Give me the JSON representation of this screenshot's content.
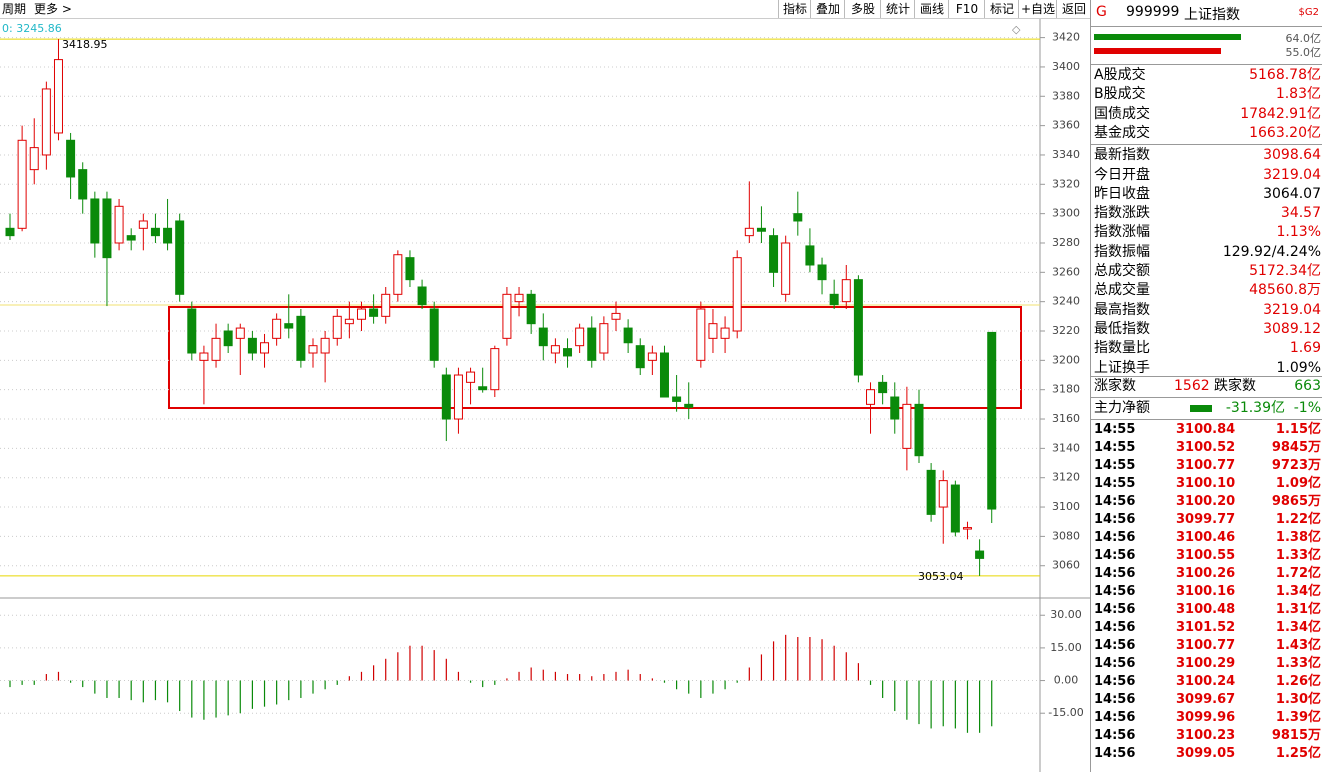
{
  "toolbar": {
    "period": "周期",
    "more": "更多 >",
    "buttons": [
      "指标",
      "叠加",
      "多股",
      "统计",
      "画线",
      "F10",
      "标记",
      "+自选",
      "返回"
    ]
  },
  "chart_data": [
    {
      "type": "candlestick",
      "cursor_label": "0: 3245.86",
      "high_label": 3418.95,
      "low_label": 3053.04,
      "up_color": "#e00000",
      "down_color": "#0a8a0a",
      "ylim": [
        3038,
        3432
      ],
      "yticks": [
        3060,
        3080,
        3100,
        3120,
        3140,
        3160,
        3180,
        3200,
        3220,
        3240,
        3260,
        3280,
        3300,
        3320,
        3340,
        3360,
        3380,
        3400,
        3420
      ],
      "open": [
        3290,
        3290,
        3330,
        3340,
        3355,
        3350,
        3330,
        3310,
        3310,
        3280,
        3285,
        3290,
        3290,
        3290,
        3295,
        3235,
        3200,
        3200,
        3220,
        3215,
        3215,
        3205,
        3215,
        3225,
        3230,
        3205,
        3205,
        3215,
        3225,
        3228,
        3235,
        3230,
        3245,
        3270,
        3250,
        3235,
        3190,
        3160,
        3185,
        3182,
        3180,
        3215,
        3240,
        3245,
        3222,
        3205,
        3208,
        3210,
        3222,
        3205,
        3228,
        3222,
        3210,
        3200,
        3205,
        3175,
        3170,
        3200,
        3215,
        3215,
        3220,
        3285,
        3290,
        3285,
        3245,
        3300,
        3278,
        3265,
        3245,
        3240,
        3255,
        3170,
        3185,
        3175,
        3140,
        3170,
        3125,
        3100,
        3115,
        3085,
        3070,
        3219.04
      ],
      "high": [
        3300,
        3360,
        3365,
        3390,
        3418.95,
        3355,
        3335,
        3315,
        3315,
        3310,
        3290,
        3300,
        3300,
        3310,
        3300,
        3240,
        3210,
        3225,
        3225,
        3225,
        3220,
        3218,
        3232,
        3245,
        3235,
        3215,
        3220,
        3235,
        3240,
        3240,
        3245,
        3250,
        3275,
        3275,
        3255,
        3240,
        3195,
        3195,
        3195,
        3195,
        3210,
        3250,
        3250,
        3248,
        3232,
        3215,
        3215,
        3225,
        3230,
        3230,
        3240,
        3228,
        3215,
        3210,
        3210,
        3190,
        3185,
        3240,
        3235,
        3230,
        3275,
        3322,
        3305,
        3290,
        3285,
        3315,
        3290,
        3270,
        3255,
        3265,
        3258,
        3185,
        3190,
        3185,
        3182,
        3180,
        3130,
        3125,
        3118,
        3090,
        3078,
        3219.04
      ],
      "low": [
        3282,
        3288,
        3320,
        3330,
        3350,
        3310,
        3300,
        3270,
        3237,
        3275,
        3275,
        3275,
        3280,
        3275,
        3240,
        3200,
        3170,
        3195,
        3205,
        3190,
        3200,
        3195,
        3210,
        3215,
        3195,
        3195,
        3185,
        3210,
        3215,
        3220,
        3225,
        3225,
        3240,
        3250,
        3235,
        3195,
        3145,
        3150,
        3170,
        3178,
        3175,
        3210,
        3230,
        3218,
        3200,
        3198,
        3195,
        3205,
        3195,
        3200,
        3220,
        3205,
        3190,
        3190,
        3175,
        3165,
        3160,
        3195,
        3205,
        3205,
        3215,
        3280,
        3280,
        3250,
        3240,
        3285,
        3260,
        3245,
        3235,
        3235,
        3185,
        3150,
        3170,
        3150,
        3125,
        3130,
        3090,
        3075,
        3080,
        3078,
        3053.04,
        3089.12
      ],
      "close": [
        3285,
        3350,
        3345,
        3385,
        3405,
        3325,
        3310,
        3280,
        3270,
        3305,
        3282,
        3295,
        3285,
        3280,
        3245,
        3205,
        3205,
        3215,
        3210,
        3222,
        3205,
        3212,
        3228,
        3222,
        3200,
        3210,
        3215,
        3230,
        3228,
        3235,
        3230,
        3245,
        3272,
        3255,
        3238,
        3200,
        3160,
        3190,
        3192,
        3180,
        3208,
        3245,
        3245,
        3225,
        3210,
        3210,
        3203,
        3222,
        3200,
        3225,
        3232,
        3212,
        3195,
        3205,
        3175,
        3172,
        3168,
        3235,
        3225,
        3222,
        3270,
        3290,
        3288,
        3260,
        3280,
        3295,
        3265,
        3255,
        3238,
        3255,
        3190,
        3180,
        3178,
        3160,
        3170,
        3135,
        3095,
        3118,
        3083,
        3086,
        3065,
        3098.64
      ]
    },
    {
      "type": "bar",
      "up_color": "#d00000",
      "down_color": "#0a8a0a",
      "ylim": [
        -42,
        37
      ],
      "yticks": [
        {
          "value": -15,
          "label": "-15.00"
        },
        {
          "value": 0,
          "label": "0.00"
        },
        {
          "value": 15,
          "label": "15.00"
        },
        {
          "value": 30,
          "label": "30.00"
        }
      ],
      "values": [
        -3,
        -2,
        -2,
        3,
        4,
        -1,
        -3,
        -6,
        -8,
        -8,
        -9,
        -10,
        -9,
        -10,
        -14,
        -17,
        -18,
        -17,
        -16,
        -15,
        -13,
        -12,
        -11,
        -9,
        -8,
        -6,
        -4,
        -2,
        2,
        4,
        7,
        10,
        13,
        16,
        16,
        14,
        10,
        4,
        -1,
        -3,
        -2,
        1,
        4,
        6,
        5,
        4,
        3,
        3,
        2,
        3,
        4,
        5,
        3,
        1,
        -1,
        -4,
        -6,
        -8,
        -6,
        -4,
        -1,
        6,
        12,
        18,
        21,
        20,
        20,
        19,
        16,
        13,
        8,
        -2,
        -8,
        -14,
        -18,
        -20,
        -22,
        -21,
        -22,
        -24,
        -24,
        -21
      ]
    }
  ],
  "side": {
    "g": "G",
    "code": "999999",
    "name": "上证指数",
    "badge": "$G2",
    "flow_bars": [
      {
        "value": 64.0,
        "label": "64.0亿",
        "color": "#0a8a0a"
      },
      {
        "value": 55.0,
        "label": "55.0亿",
        "color": "#e00000"
      }
    ],
    "stats": [
      {
        "label": "A股成交",
        "value": "5168.78亿",
        "color": "#e00000"
      },
      {
        "label": "B股成交",
        "value": "1.83亿",
        "color": "#e00000"
      },
      {
        "label": "国债成交",
        "value": "17842.91亿",
        "color": "#e00000"
      },
      {
        "label": "基金成交",
        "value": "1663.20亿",
        "color": "#e00000"
      },
      {
        "label": "最新指数",
        "value": "3098.64",
        "color": "#e00000"
      },
      {
        "label": "今日开盘",
        "value": "3219.04",
        "color": "#e00000"
      },
      {
        "label": "昨日收盘",
        "value": "3064.07",
        "color": "#000000"
      },
      {
        "label": "指数涨跌",
        "value": "34.57",
        "color": "#e00000"
      },
      {
        "label": "指数涨幅",
        "value": "1.13%",
        "color": "#e00000"
      },
      {
        "label": "指数振幅",
        "value": "129.92/4.24%",
        "color": "#000000"
      },
      {
        "label": "总成交额",
        "value": "5172.34亿",
        "color": "#e00000"
      },
      {
        "label": "总成交量",
        "value": "48560.8万",
        "color": "#e00000"
      },
      {
        "label": "最高指数",
        "value": "3219.04",
        "color": "#e00000"
      },
      {
        "label": "最低指数",
        "value": "3089.12",
        "color": "#e00000"
      },
      {
        "label": "指数量比",
        "value": "1.69",
        "color": "#e00000"
      },
      {
        "label": "上证换手",
        "value": "1.09%",
        "color": "#000000"
      }
    ],
    "breadth": {
      "up_label": "涨家数",
      "up": 1562,
      "down_label": "跌家数",
      "down": 663
    },
    "net": {
      "label": "主力净额",
      "amount": "-31.39亿",
      "pct": "-1%"
    },
    "ticks": [
      [
        "14:55",
        "3100.84",
        "1.15亿"
      ],
      [
        "14:55",
        "3100.52",
        "9845万"
      ],
      [
        "14:55",
        "3100.77",
        "9723万"
      ],
      [
        "14:55",
        "3100.10",
        "1.09亿"
      ],
      [
        "14:56",
        "3100.20",
        "9865万"
      ],
      [
        "14:56",
        "3099.77",
        "1.22亿"
      ],
      [
        "14:56",
        "3100.46",
        "1.38亿"
      ],
      [
        "14:56",
        "3100.55",
        "1.33亿"
      ],
      [
        "14:56",
        "3100.26",
        "1.72亿"
      ],
      [
        "14:56",
        "3100.16",
        "1.34亿"
      ],
      [
        "14:56",
        "3100.48",
        "1.31亿"
      ],
      [
        "14:56",
        "3101.52",
        "1.34亿"
      ],
      [
        "14:56",
        "3100.77",
        "1.43亿"
      ],
      [
        "14:56",
        "3100.29",
        "1.33亿"
      ],
      [
        "14:56",
        "3100.24",
        "1.26亿"
      ],
      [
        "14:56",
        "3099.67",
        "1.30亿"
      ],
      [
        "14:56",
        "3099.96",
        "1.39亿"
      ],
      [
        "14:56",
        "3100.23",
        "9815万"
      ],
      [
        "14:56",
        "3099.05",
        "1.25亿"
      ]
    ]
  }
}
